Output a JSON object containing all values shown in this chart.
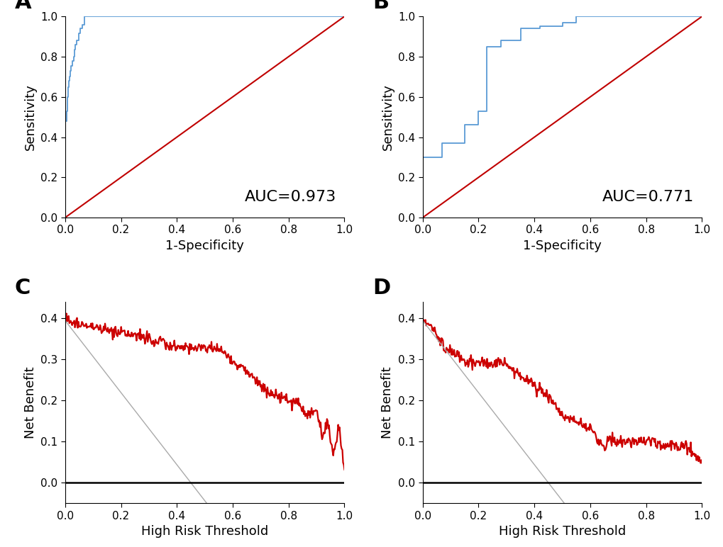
{
  "panel_label_fontsize": 22,
  "panel_label_fontweight": "bold",
  "roc_A": {
    "xlabel": "1-Specificity",
    "ylabel": "Sensitivity",
    "auc_text": "AUC=0.973",
    "auc_fontsize": 16,
    "xlim": [
      0.0,
      1.0
    ],
    "ylim": [
      0.0,
      1.0
    ],
    "xticks": [
      0.0,
      0.2,
      0.4,
      0.6,
      0.8,
      1.0
    ],
    "yticks": [
      0.0,
      0.2,
      0.4,
      0.6,
      0.8,
      1.0
    ],
    "roc_color": "#5B9BD5",
    "diag_color": "#C00000",
    "roc_lw": 1.3,
    "diag_lw": 1.5
  },
  "roc_B": {
    "xlabel": "1-Specificity",
    "ylabel": "Sensitivity",
    "auc_text": "AUC=0.771",
    "auc_fontsize": 16,
    "xlim": [
      0.0,
      1.0
    ],
    "ylim": [
      0.0,
      1.0
    ],
    "xticks": [
      0.0,
      0.2,
      0.4,
      0.6,
      0.8,
      1.0
    ],
    "yticks": [
      0.0,
      0.2,
      0.4,
      0.6,
      0.8,
      1.0
    ],
    "roc_color": "#5B9BD5",
    "diag_color": "#C00000",
    "roc_lw": 1.3,
    "diag_lw": 1.5
  },
  "dca_C": {
    "xlabel": "High Risk Threshold",
    "ylabel": "Net Benefit",
    "xlim": [
      0.0,
      1.0
    ],
    "ylim": [
      -0.05,
      0.44
    ],
    "xticks": [
      0.0,
      0.2,
      0.4,
      0.6,
      0.8,
      1.0
    ],
    "yticks": [
      0.0,
      0.1,
      0.2,
      0.3,
      0.4
    ],
    "model_color": "#CC0000",
    "all_color": "#AAAAAA",
    "none_color": "#000000",
    "model_lw": 1.6,
    "all_lw": 1.0,
    "none_lw": 1.8
  },
  "dca_D": {
    "xlabel": "High Risk Threshold",
    "ylabel": "Net Benefit",
    "xlim": [
      0.0,
      1.0
    ],
    "ylim": [
      -0.05,
      0.44
    ],
    "xticks": [
      0.0,
      0.2,
      0.4,
      0.6,
      0.8,
      1.0
    ],
    "yticks": [
      0.0,
      0.1,
      0.2,
      0.3,
      0.4
    ],
    "model_color": "#CC0000",
    "all_color": "#AAAAAA",
    "none_color": "#000000",
    "model_lw": 1.6,
    "all_lw": 1.0,
    "none_lw": 1.8
  },
  "axis_label_fontsize": 13,
  "tick_fontsize": 11,
  "background_color": "#FFFFFF"
}
